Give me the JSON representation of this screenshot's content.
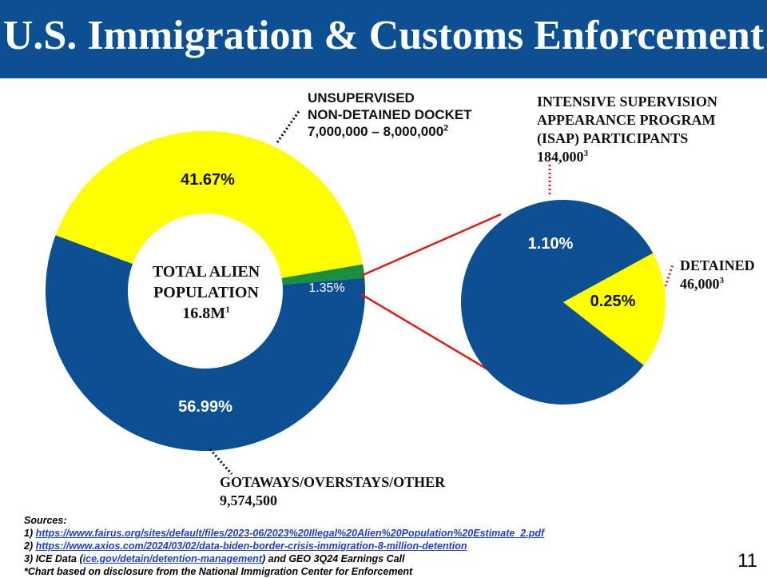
{
  "header": {
    "title": "U.S. Immigration & Customs Enforcement"
  },
  "colors": {
    "blue": "#0d4f93",
    "yellow": "#ffff00",
    "green": "#1a8f3c",
    "red": "#e01b1b"
  },
  "labels": {
    "unsupervised": [
      "UNSUPERVISED",
      "NON-DETAINED DOCKET",
      "7,000,000 – 8,000,000"
    ],
    "unsupervised_sup": "2",
    "isap": [
      "INTENSIVE SUPERVISION",
      "APPEARANCE PROGRAM",
      "(ISAP) PARTICIPANTS",
      "184,000"
    ],
    "isap_sup": "3",
    "detained": [
      "DETAINED",
      "46,000"
    ],
    "detained_sup": "3",
    "gotaways": [
      "GOTAWAYS/OVERSTAYS/OTHER",
      "9,574,500"
    ],
    "center": [
      "TOTAL ALIEN",
      "POPULATION",
      "16.8M"
    ],
    "center_sup": "1"
  },
  "chart_data": [
    {
      "type": "pie",
      "variant": "donut",
      "slices": [
        {
          "label": "41.67%",
          "value": 41.67,
          "color": "#ffff00"
        },
        {
          "label": "1.35%",
          "value": 1.35,
          "color": "#1a8f3c"
        },
        {
          "label": "56.99%",
          "value": 56.99,
          "color": "#0d4f93"
        }
      ]
    },
    {
      "type": "pie",
      "slices": [
        {
          "label": "1.10%",
          "value": 1.1,
          "color": "#0d4f93"
        },
        {
          "label": "0.25%",
          "value": 0.25,
          "color": "#ffff00"
        }
      ]
    }
  ],
  "sources": {
    "title": "Sources:",
    "lines": [
      {
        "prefix": "1) ",
        "link": "https://www.fairus.org/sites/default/files/2023-06/2023%20Illegal%20Alien%20Population%20Estimate_2.pdf",
        "suffix": ""
      },
      {
        "prefix": "2) ",
        "link": "https://www.axios.com/2024/03/02/data-biden-border-crisis-immigration-8-million-detention",
        "suffix": ""
      },
      {
        "prefix": "3) ICE Data (",
        "link": "ice.gov/detain/detention-management",
        "suffix": ") and GEO 3Q24 Earnings Call"
      },
      {
        "prefix": "*Chart based on disclosure from the National Immigration Center for Enforcement",
        "link": "",
        "suffix": ""
      }
    ]
  },
  "page_number": "11"
}
